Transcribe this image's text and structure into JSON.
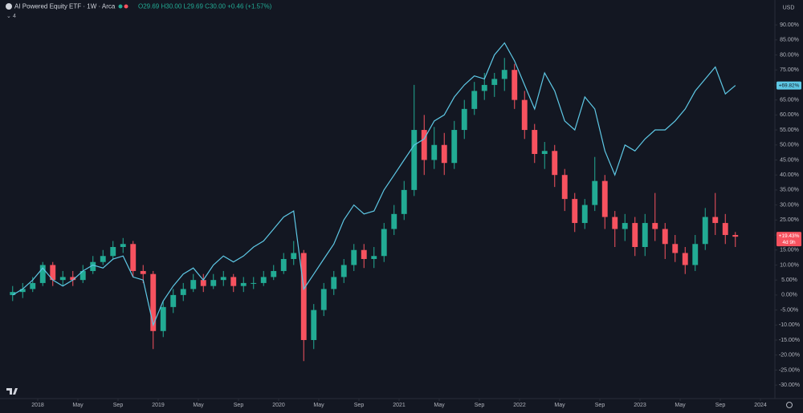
{
  "header": {
    "title": "AI Powered Equity ETF · 1W · Arca",
    "ohlc": "O29.69 H30.00 L29.69 C30.00 +0.46 (+1.57%)",
    "currency": "USD",
    "indicators_count": "4"
  },
  "chart_data": {
    "type": "candlestick",
    "up_color": "#22ab94",
    "down_color": "#f7525f",
    "grid": false,
    "x": [
      -2.5,
      -1.5,
      -0.5,
      0.5,
      1.5,
      2.5,
      3.5,
      4.5,
      5.5,
      6.5,
      7.5,
      8.5,
      9.5,
      10.5,
      11.5,
      12.5,
      13.5,
      14.5,
      15.5,
      16.5,
      17.5,
      18.5,
      19.5,
      20.5,
      21.5,
      22.5,
      23.5,
      24.5,
      25.5,
      26.5,
      27.5,
      28.5,
      29.5,
      30.5,
      31.5,
      32.5,
      33.5,
      34.5,
      35.5,
      36.5,
      37.5,
      38.5,
      39.5,
      40.5,
      41.5,
      42.5,
      43.5,
      44.5,
      45.5,
      46.5,
      47.5,
      48.5,
      49.5,
      50.5,
      51.5,
      52.5,
      53.5,
      54.5,
      55.5,
      56.5,
      57.5,
      58.5,
      59.5,
      60.5,
      61.5,
      62.5,
      63.5,
      64.5,
      65.5,
      66.5,
      67.5,
      68.5,
      69.5
    ],
    "open": [
      0,
      1,
      2,
      4,
      10,
      5,
      6,
      5,
      8,
      11,
      13,
      16,
      17,
      8,
      7,
      -12,
      -4,
      0,
      2,
      5,
      3,
      5,
      6,
      3,
      4,
      4,
      6,
      8,
      12,
      14,
      -15,
      -5,
      2,
      6,
      10,
      15,
      12,
      13,
      22,
      27,
      35,
      55,
      45,
      50,
      44,
      55,
      62,
      68,
      70,
      72,
      75,
      65,
      55,
      47,
      48,
      40,
      32,
      24,
      30,
      38,
      26,
      22,
      24,
      16,
      24,
      22,
      17,
      14,
      10,
      17,
      26,
      24,
      20
    ],
    "high": [
      3,
      4,
      6,
      11,
      11,
      8,
      8,
      10,
      13,
      15,
      18,
      19,
      18,
      10,
      8,
      -2,
      2,
      4,
      7,
      7,
      7,
      8,
      7,
      6,
      6,
      8,
      10,
      14,
      18,
      15,
      -3,
      4,
      8,
      12,
      17,
      17,
      16,
      24,
      30,
      38,
      70,
      60,
      56,
      54,
      58,
      65,
      71,
      74,
      74,
      79,
      77,
      68,
      57,
      51,
      50,
      42,
      34,
      32,
      46,
      40,
      28,
      27,
      26,
      27,
      34,
      24,
      20,
      16,
      20,
      29,
      34,
      27,
      21
    ],
    "low": [
      -2,
      -1,
      1,
      3,
      3,
      3,
      3,
      4,
      7,
      10,
      12,
      14,
      6,
      4,
      -18,
      -14,
      -6,
      -2,
      1,
      1,
      2,
      3,
      1,
      1,
      2,
      3,
      5,
      7,
      10,
      -22,
      -18,
      -7,
      0,
      4,
      8,
      9,
      9,
      11,
      20,
      25,
      33,
      40,
      42,
      40,
      42,
      52,
      60,
      65,
      66,
      68,
      62,
      52,
      44,
      42,
      36,
      28,
      21,
      22,
      28,
      22,
      16,
      18,
      13,
      13,
      18,
      12,
      11,
      7,
      8,
      15,
      20,
      17,
      16
    ],
    "close": [
      1,
      2,
      4,
      10,
      5,
      6,
      5,
      8,
      11,
      13,
      16,
      17,
      8,
      7,
      -12,
      -4,
      0,
      2,
      5,
      3,
      5,
      6,
      3,
      4,
      4,
      6,
      8,
      12,
      14,
      -15,
      -5,
      2,
      6,
      10,
      15,
      12,
      13,
      22,
      27,
      35,
      55,
      45,
      50,
      44,
      55,
      62,
      68,
      70,
      72,
      75,
      65,
      55,
      47,
      48,
      40,
      32,
      24,
      30,
      38,
      26,
      22,
      24,
      16,
      24,
      22,
      17,
      14,
      10,
      17,
      26,
      24,
      20,
      19.43
    ],
    "last_label": "+19.43%",
    "countdown": "4d 9h",
    "series": [
      {
        "color": "#5ec8e5",
        "last_label": "+69.82%",
        "values": [
          0,
          2,
          5,
          9,
          5,
          3,
          5,
          8,
          10,
          9,
          12,
          13,
          6,
          5,
          -10,
          -2,
          3,
          7,
          9,
          5,
          10,
          13,
          11,
          13,
          16,
          18,
          22,
          26,
          28,
          2,
          7,
          12,
          17,
          25,
          30,
          27,
          28,
          35,
          40,
          45,
          50,
          52,
          58,
          60,
          66,
          70,
          73,
          72,
          80,
          84,
          78,
          70,
          62,
          74,
          68,
          58,
          55,
          66,
          62,
          48,
          40,
          50,
          48,
          52,
          55,
          55,
          58,
          62,
          68,
          72,
          76,
          67,
          69.82
        ]
      }
    ],
    "xlim": [
      -3.76,
      73.44
    ],
    "xticks": [
      {
        "value": 0,
        "label": "2018"
      },
      {
        "value": 4,
        "label": "May"
      },
      {
        "value": 8,
        "label": "Sep"
      },
      {
        "value": 12,
        "label": "2019"
      },
      {
        "value": 16,
        "label": "May"
      },
      {
        "value": 20,
        "label": "Sep"
      },
      {
        "value": 24,
        "label": "2020"
      },
      {
        "value": 28,
        "label": "May"
      },
      {
        "value": 32,
        "label": "Sep"
      },
      {
        "value": 36,
        "label": "2021"
      },
      {
        "value": 40,
        "label": "May"
      },
      {
        "value": 44,
        "label": "Sep"
      },
      {
        "value": 48,
        "label": "2022"
      },
      {
        "value": 52,
        "label": "May"
      },
      {
        "value": 56,
        "label": "Sep"
      },
      {
        "value": 60,
        "label": "2023"
      },
      {
        "value": 64,
        "label": "May"
      },
      {
        "value": 68,
        "label": "Sep"
      },
      {
        "value": 72,
        "label": "2024"
      }
    ],
    "ylim": [
      -34.5,
      98.3
    ],
    "yticks": [
      {
        "value": -30,
        "label": "-30.00%"
      },
      {
        "value": -25,
        "label": "-25.00%"
      },
      {
        "value": -20,
        "label": "-20.00%"
      },
      {
        "value": -15,
        "label": "-15.00%"
      },
      {
        "value": -10,
        "label": "-10.00%"
      },
      {
        "value": -5,
        "label": "-5.00%"
      },
      {
        "value": 0,
        "label": "0.00%"
      },
      {
        "value": 5,
        "label": "5.00%"
      },
      {
        "value": 10,
        "label": "10.00%"
      },
      {
        "value": 15,
        "label": "15.00%"
      },
      {
        "value": 20,
        "label": "20.00%"
      },
      {
        "value": 25,
        "label": "25.00%"
      },
      {
        "value": 30,
        "label": "30.00%"
      },
      {
        "value": 35,
        "label": "35.00%"
      },
      {
        "value": 40,
        "label": "40.00%"
      },
      {
        "value": 45,
        "label": "45.00%"
      },
      {
        "value": 50,
        "label": "50.00%"
      },
      {
        "value": 55,
        "label": "55.00%"
      },
      {
        "value": 60,
        "label": "60.00%"
      },
      {
        "value": 65,
        "label": "65.00%"
      },
      {
        "value": 70,
        "label": "70.00%"
      },
      {
        "value": 75,
        "label": "75.00%"
      },
      {
        "value": 80,
        "label": "80.00%"
      },
      {
        "value": 85,
        "label": "85.00%"
      },
      {
        "value": 90,
        "label": "90.00%"
      }
    ]
  }
}
